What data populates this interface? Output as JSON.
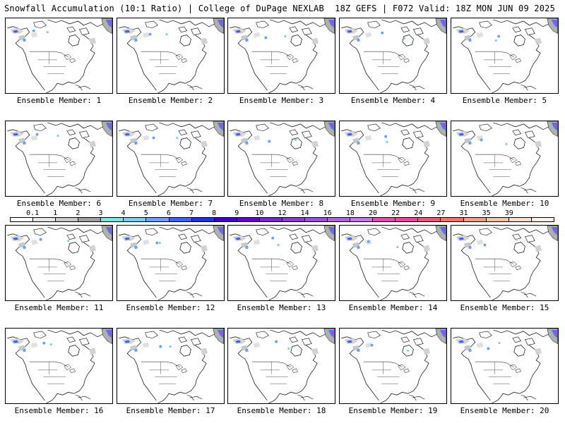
{
  "header": {
    "title": "Snowfall Accumulation (10:1 Ratio) | College of DuPage NEXLAB",
    "run_info": "18Z GEFS | F072 Valid: 18Z MON JUN 09 2025"
  },
  "panels": [
    {
      "label": "Ensemble Member: 1"
    },
    {
      "label": "Ensemble Member: 2"
    },
    {
      "label": "Ensemble Member: 3"
    },
    {
      "label": "Ensemble Member: 4"
    },
    {
      "label": "Ensemble Member: 5"
    },
    {
      "label": "Ensemble Member: 6"
    },
    {
      "label": "Ensemble Member: 7"
    },
    {
      "label": "Ensemble Member: 8"
    },
    {
      "label": "Ensemble Member: 9"
    },
    {
      "label": "Ensemble Member: 10"
    },
    {
      "label": "Ensemble Member: 11"
    },
    {
      "label": "Ensemble Member: 12"
    },
    {
      "label": "Ensemble Member: 13"
    },
    {
      "label": "Ensemble Member: 14"
    },
    {
      "label": "Ensemble Member: 15"
    },
    {
      "label": "Ensemble Member: 16"
    },
    {
      "label": "Ensemble Member: 17"
    },
    {
      "label": "Ensemble Member: 18"
    },
    {
      "label": "Ensemble Member: 19"
    },
    {
      "label": "Ensemble Member: 20"
    }
  ],
  "legend": {
    "tick_labels": [
      "0.1",
      "1",
      "2",
      "3",
      "4",
      "5",
      "6",
      "7",
      "8",
      "9",
      "10",
      "12",
      "14",
      "16",
      "18",
      "20",
      "22",
      "24",
      "27",
      "31",
      "35",
      "39"
    ],
    "colors": [
      "#ffffff",
      "#e6e6e6",
      "#c8c8c8",
      "#a0a0a0",
      "#82e1e1",
      "#82c8f0",
      "#6ea0f0",
      "#3c64f0",
      "#1e32e6",
      "#3c00c8",
      "#6400c8",
      "#7828c8",
      "#8c3cc8",
      "#a050d2",
      "#b464d2",
      "#c878dc",
      "#dc50b4",
      "#e6469b",
      "#e65a78",
      "#e67864",
      "#f0a082",
      "#f5c3a5",
      "#fadccd",
      "#fff0e6"
    ]
  },
  "colors": {
    "snow_light": "#d2d2d2",
    "snow_blue": "#3c64f0",
    "snow_purple": "#a050d2",
    "coast": "#000000"
  }
}
